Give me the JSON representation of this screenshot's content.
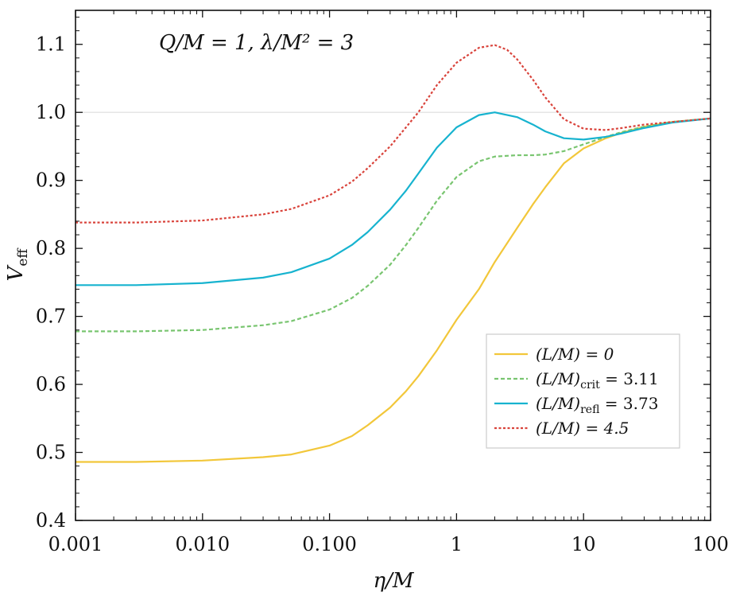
{
  "chart_data": {
    "type": "line",
    "xscale": "log",
    "xlim": [
      0.001,
      100
    ],
    "ylim": [
      0.4,
      1.15
    ],
    "xlabel": "η/M",
    "ylabel": "V_eff",
    "annotation": "Q/M = 1, λ/M² = 3",
    "xticks": [
      {
        "value": 0.001,
        "label": "0.001"
      },
      {
        "value": 0.01,
        "label": "0.010"
      },
      {
        "value": 0.1,
        "label": "0.100"
      },
      {
        "value": 1,
        "label": "1"
      },
      {
        "value": 10,
        "label": "10"
      },
      {
        "value": 100,
        "label": "100"
      }
    ],
    "yticks": [
      {
        "value": 0.4,
        "label": "0.4"
      },
      {
        "value": 0.5,
        "label": "0.5"
      },
      {
        "value": 0.6,
        "label": "0.6"
      },
      {
        "value": 0.7,
        "label": "0.7"
      },
      {
        "value": 0.8,
        "label": "0.8"
      },
      {
        "value": 0.9,
        "label": "0.9"
      },
      {
        "value": 1.0,
        "label": "1.0"
      },
      {
        "value": 1.1,
        "label": "1.1"
      }
    ],
    "reference_line": {
      "y": 1.0
    },
    "legend_position": "lower-right",
    "series": [
      {
        "name": "(L/M) = 0",
        "color": "#f2c73a",
        "dash": "solid",
        "x": [
          0.001,
          0.003,
          0.01,
          0.03,
          0.05,
          0.1,
          0.15,
          0.2,
          0.3,
          0.4,
          0.5,
          0.7,
          1,
          1.5,
          2,
          3,
          4,
          5,
          7,
          10,
          15,
          20,
          30,
          50,
          100
        ],
        "y": [
          0.486,
          0.486,
          0.488,
          0.493,
          0.497,
          0.51,
          0.524,
          0.54,
          0.566,
          0.59,
          0.612,
          0.65,
          0.695,
          0.74,
          0.78,
          0.83,
          0.865,
          0.89,
          0.925,
          0.947,
          0.962,
          0.97,
          0.979,
          0.986,
          0.991
        ]
      },
      {
        "name": "(L/M)_crit = 3.11",
        "name_parts": {
          "main": "(L/M)",
          "sub": "crit",
          "rest": " = 3.11"
        },
        "color": "#79c570",
        "dash": "dashed",
        "x": [
          0.001,
          0.003,
          0.01,
          0.03,
          0.05,
          0.1,
          0.15,
          0.2,
          0.3,
          0.4,
          0.5,
          0.7,
          1,
          1.5,
          2,
          3,
          4,
          5,
          7,
          10,
          15,
          20,
          30,
          50,
          100
        ],
        "y": [
          0.678,
          0.678,
          0.68,
          0.687,
          0.693,
          0.71,
          0.727,
          0.745,
          0.776,
          0.805,
          0.83,
          0.87,
          0.905,
          0.928,
          0.935,
          0.937,
          0.937,
          0.938,
          0.943,
          0.953,
          0.964,
          0.971,
          0.979,
          0.986,
          0.991
        ]
      },
      {
        "name": "(L/M)_refl = 3.73",
        "name_parts": {
          "main": "(L/M)",
          "sub": "refl",
          "rest": " = 3.73"
        },
        "color": "#17b3cf",
        "dash": "solid",
        "x": [
          0.001,
          0.003,
          0.01,
          0.03,
          0.05,
          0.1,
          0.15,
          0.2,
          0.3,
          0.4,
          0.5,
          0.7,
          1,
          1.5,
          2,
          3,
          4,
          5,
          7,
          10,
          15,
          20,
          30,
          50,
          100
        ],
        "y": [
          0.746,
          0.746,
          0.749,
          0.757,
          0.765,
          0.785,
          0.805,
          0.824,
          0.857,
          0.885,
          0.91,
          0.948,
          0.978,
          0.996,
          1.0,
          0.993,
          0.982,
          0.972,
          0.962,
          0.96,
          0.964,
          0.969,
          0.977,
          0.985,
          0.991
        ]
      },
      {
        "name": "(L/M) = 4.5",
        "color": "#d9433b",
        "dash": "dotted",
        "x": [
          0.001,
          0.003,
          0.01,
          0.03,
          0.05,
          0.1,
          0.15,
          0.2,
          0.3,
          0.4,
          0.5,
          0.7,
          1,
          1.5,
          2,
          2.5,
          3,
          4,
          5,
          7,
          10,
          15,
          20,
          30,
          50,
          100
        ],
        "y": [
          0.838,
          0.838,
          0.841,
          0.85,
          0.858,
          0.878,
          0.898,
          0.918,
          0.95,
          0.978,
          1.0,
          1.04,
          1.073,
          1.095,
          1.099,
          1.092,
          1.078,
          1.048,
          1.022,
          0.99,
          0.976,
          0.974,
          0.977,
          0.982,
          0.986,
          0.991
        ]
      }
    ]
  }
}
